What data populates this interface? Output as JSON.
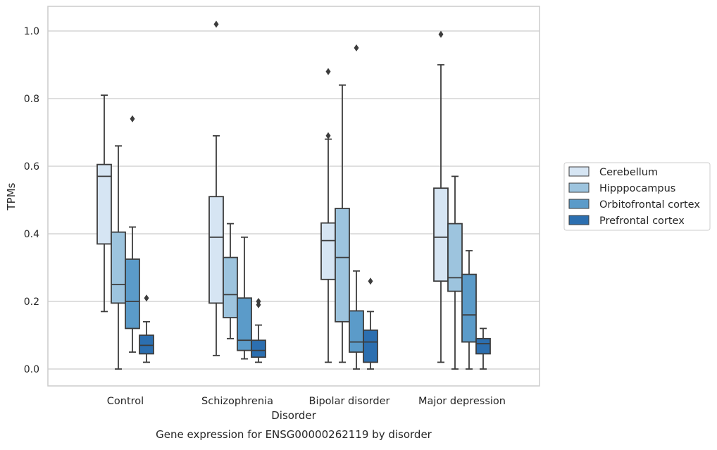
{
  "chart_data": {
    "type": "boxplot",
    "title": "",
    "caption": "Gene expression for ENSG00000262119 by disorder",
    "xlabel": "Disorder",
    "ylabel": "TPMs",
    "ylim": [
      -0.05,
      1.075
    ],
    "yticks": [
      0.0,
      0.2,
      0.4,
      0.6,
      0.8,
      1.0
    ],
    "ytick_labels": [
      "0.0",
      "0.2",
      "0.4",
      "0.6",
      "0.8",
      "1.0"
    ],
    "grid": "horizontal",
    "legend_position": "right",
    "categories": [
      "Control",
      "Schizophrenia",
      "Bipolar disorder",
      "Major depression"
    ],
    "series": [
      {
        "name": "Cerebellum",
        "color": "#d6e5f3",
        "boxes": [
          {
            "whisker_low": 0.17,
            "q1": 0.37,
            "median": 0.57,
            "q3": 0.605,
            "whisker_high": 0.81,
            "outliers": []
          },
          {
            "whisker_low": 0.04,
            "q1": 0.195,
            "median": 0.39,
            "q3": 0.51,
            "whisker_high": 0.69,
            "outliers": [
              1.02
            ]
          },
          {
            "whisker_low": 0.02,
            "q1": 0.265,
            "median": 0.38,
            "q3": 0.432,
            "whisker_high": 0.68,
            "outliers": [
              0.69,
              0.88
            ]
          },
          {
            "whisker_low": 0.02,
            "q1": 0.26,
            "median": 0.39,
            "q3": 0.535,
            "whisker_high": 0.9,
            "outliers": [
              0.99
            ]
          }
        ]
      },
      {
        "name": "Hipppocampus",
        "color": "#9dc4de",
        "boxes": [
          {
            "whisker_low": 0.0,
            "q1": 0.195,
            "median": 0.25,
            "q3": 0.405,
            "whisker_high": 0.66,
            "outliers": []
          },
          {
            "whisker_low": 0.09,
            "q1": 0.152,
            "median": 0.22,
            "q3": 0.33,
            "whisker_high": 0.43,
            "outliers": []
          },
          {
            "whisker_low": 0.02,
            "q1": 0.14,
            "median": 0.33,
            "q3": 0.475,
            "whisker_high": 0.84,
            "outliers": []
          },
          {
            "whisker_low": 0.0,
            "q1": 0.23,
            "median": 0.27,
            "q3": 0.43,
            "whisker_high": 0.57,
            "outliers": []
          }
        ]
      },
      {
        "name": "Orbitofrontal cortex",
        "color": "#5b9bc9",
        "boxes": [
          {
            "whisker_low": 0.05,
            "q1": 0.12,
            "median": 0.2,
            "q3": 0.325,
            "whisker_high": 0.42,
            "outliers": [
              0.74
            ]
          },
          {
            "whisker_low": 0.03,
            "q1": 0.055,
            "median": 0.085,
            "q3": 0.21,
            "whisker_high": 0.39,
            "outliers": []
          },
          {
            "whisker_low": 0.0,
            "q1": 0.05,
            "median": 0.08,
            "q3": 0.172,
            "whisker_high": 0.29,
            "outliers": [
              0.95
            ]
          },
          {
            "whisker_low": 0.0,
            "q1": 0.08,
            "median": 0.16,
            "q3": 0.28,
            "whisker_high": 0.35,
            "outliers": []
          }
        ]
      },
      {
        "name": "Prefrontal cortex",
        "color": "#2c6fb0",
        "boxes": [
          {
            "whisker_low": 0.02,
            "q1": 0.045,
            "median": 0.07,
            "q3": 0.1,
            "whisker_high": 0.14,
            "outliers": [
              0.21
            ]
          },
          {
            "whisker_low": 0.02,
            "q1": 0.035,
            "median": 0.055,
            "q3": 0.085,
            "whisker_high": 0.13,
            "outliers": [
              0.19,
              0.2
            ]
          },
          {
            "whisker_low": 0.0,
            "q1": 0.02,
            "median": 0.08,
            "q3": 0.115,
            "whisker_high": 0.17,
            "outliers": [
              0.26
            ]
          },
          {
            "whisker_low": 0.0,
            "q1": 0.045,
            "median": 0.075,
            "q3": 0.09,
            "whisker_high": 0.12,
            "outliers": []
          }
        ]
      }
    ]
  },
  "colors": {
    "axes_edge": "#cccccc",
    "grid": "#cccccc",
    "box_line": "#3c3c3c",
    "text": "#262626"
  }
}
